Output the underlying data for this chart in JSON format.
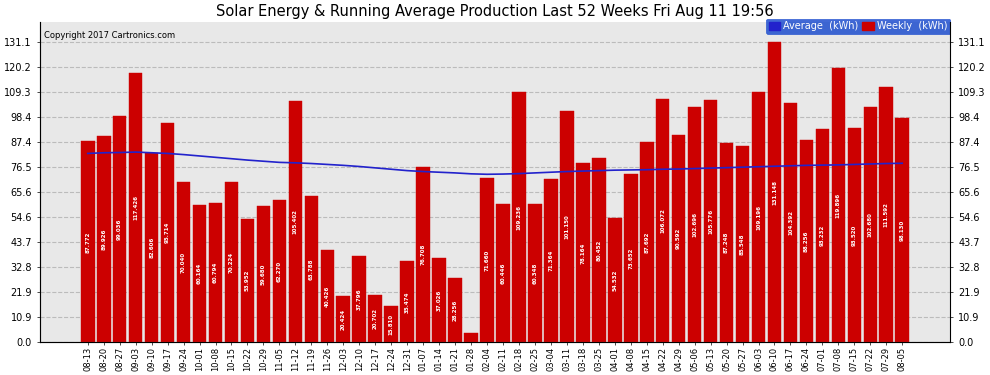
{
  "title": "Solar Energy & Running Average Production Last 52 Weeks Fri Aug 11 19:56",
  "copyright": "Copyright 2017 Cartronics.com",
  "legend_average": "Average  (kWh)",
  "legend_weekly": "Weekly  (kWh)",
  "bar_color": "#cc0000",
  "avg_line_color": "#2222cc",
  "background_color": "#ffffff",
  "plot_bg_color": "#e8e8e8",
  "grid_color": "#bbbbbb",
  "yticks": [
    0.0,
    10.9,
    21.9,
    32.8,
    43.7,
    54.6,
    65.6,
    76.5,
    87.4,
    98.4,
    109.3,
    120.2,
    131.1
  ],
  "ylim_max": 140,
  "categories": [
    "08-13",
    "08-20",
    "08-27",
    "09-03",
    "09-10",
    "09-17",
    "09-24",
    "10-01",
    "10-08",
    "10-15",
    "10-22",
    "10-29",
    "11-05",
    "11-12",
    "11-19",
    "11-26",
    "12-03",
    "12-10",
    "12-17",
    "12-24",
    "12-31",
    "01-07",
    "01-14",
    "01-21",
    "01-28",
    "02-04",
    "02-11",
    "02-18",
    "02-25",
    "03-04",
    "03-11",
    "03-18",
    "03-25",
    "04-01",
    "04-08",
    "04-15",
    "04-22",
    "04-29",
    "05-06",
    "05-13",
    "05-20",
    "05-27",
    "06-03",
    "06-10",
    "06-17",
    "06-24",
    "07-01",
    "07-08",
    "07-15",
    "07-22",
    "07-29",
    "08-05"
  ],
  "weekly_values": [
    87.772,
    89.926,
    99.036,
    117.426,
    82.606,
    95.714,
    70.04,
    60.164,
    60.794,
    70.224,
    53.952,
    59.68,
    62.27,
    105.402,
    63.788,
    40.426,
    20.424,
    37.796,
    20.702,
    15.81,
    35.474,
    76.708,
    37.026,
    28.256,
    4.312,
    71.66,
    60.446,
    109.236,
    60.348,
    71.364,
    101.15,
    78.164,
    80.452,
    54.532,
    73.652,
    87.692,
    106.072,
    90.592,
    102.696,
    105.776,
    87.248,
    85.548,
    109.196,
    131.148,
    104.392,
    88.256,
    93.232,
    119.896,
    93.52,
    102.68,
    111.592,
    98.13
  ],
  "avg_values": [
    82.5,
    82.8,
    82.9,
    83.1,
    82.8,
    82.5,
    82.0,
    81.4,
    80.8,
    80.2,
    79.6,
    79.1,
    78.6,
    78.4,
    78.1,
    77.7,
    77.3,
    76.8,
    76.2,
    75.6,
    75.0,
    74.6,
    74.3,
    74.0,
    73.6,
    73.4,
    73.5,
    73.7,
    74.0,
    74.3,
    74.6,
    74.8,
    75.0,
    75.2,
    75.3,
    75.4,
    75.6,
    75.7,
    75.9,
    76.1,
    76.3,
    76.5,
    76.7,
    76.9,
    77.1,
    77.3,
    77.4,
    77.5,
    77.7,
    77.9,
    78.1,
    78.2
  ]
}
